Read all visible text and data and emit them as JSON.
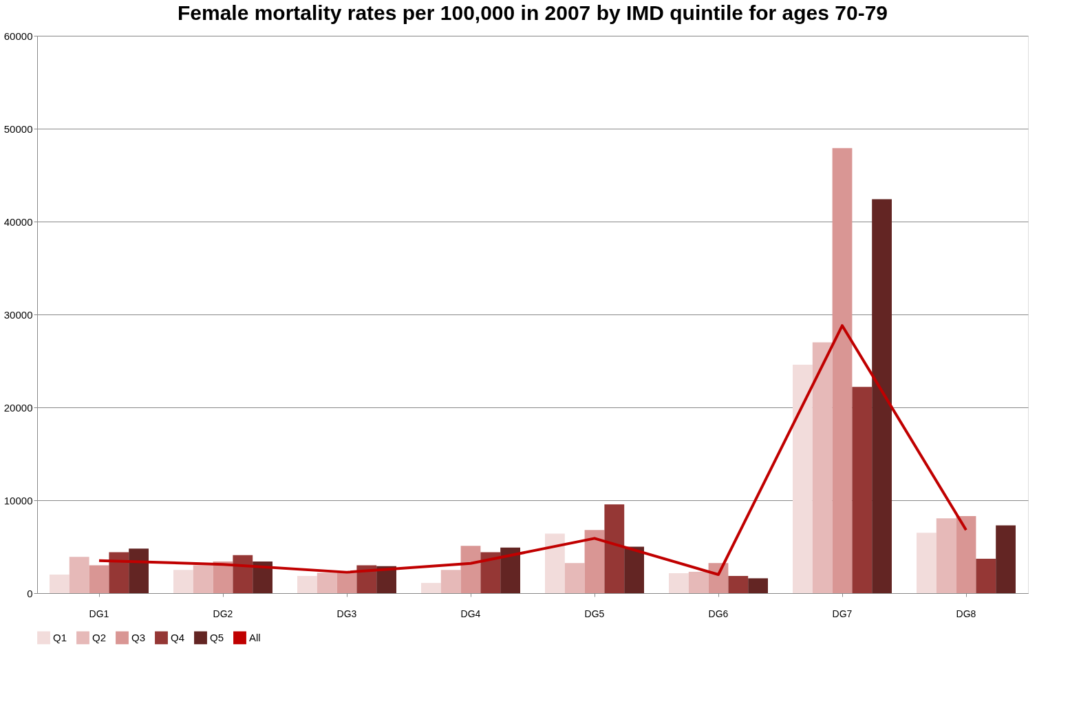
{
  "chart_data": {
    "type": "bar",
    "title": "Female mortality rates per 100,000 in 2007 by IMD quintile for ages 70-79",
    "categories": [
      "DG1",
      "DG2",
      "DG3",
      "DG4",
      "DG5",
      "DG6",
      "DG7",
      "DG8"
    ],
    "series": [
      {
        "name": "Q1",
        "color": "#f2dcdb",
        "values": [
          2000,
          2500,
          1850,
          1100,
          6400,
          2150,
          24600,
          6500
        ]
      },
      {
        "name": "Q2",
        "color": "#e6b9b8",
        "values": [
          3900,
          3000,
          2200,
          2500,
          3250,
          2300,
          27000,
          8050
        ]
      },
      {
        "name": "Q3",
        "color": "#d99694",
        "values": [
          3000,
          3400,
          2200,
          5100,
          6800,
          3250,
          47900,
          8300
        ]
      },
      {
        "name": "Q4",
        "color": "#953735",
        "values": [
          4400,
          4100,
          3000,
          4400,
          9550,
          1850,
          22200,
          3700
        ]
      },
      {
        "name": "Q5",
        "color": "#632523",
        "values": [
          4800,
          3400,
          2900,
          4900,
          5000,
          1600,
          42400,
          7300
        ]
      },
      {
        "name": "All",
        "color": "#c00000",
        "type": "line",
        "values": [
          3500,
          3100,
          2250,
          3200,
          5900,
          2000,
          28800,
          6800
        ]
      }
    ],
    "ylim": [
      0,
      60000
    ],
    "yticks": [
      0,
      10000,
      20000,
      30000,
      40000,
      50000,
      60000
    ],
    "grid": "y",
    "legend": "bottom"
  }
}
